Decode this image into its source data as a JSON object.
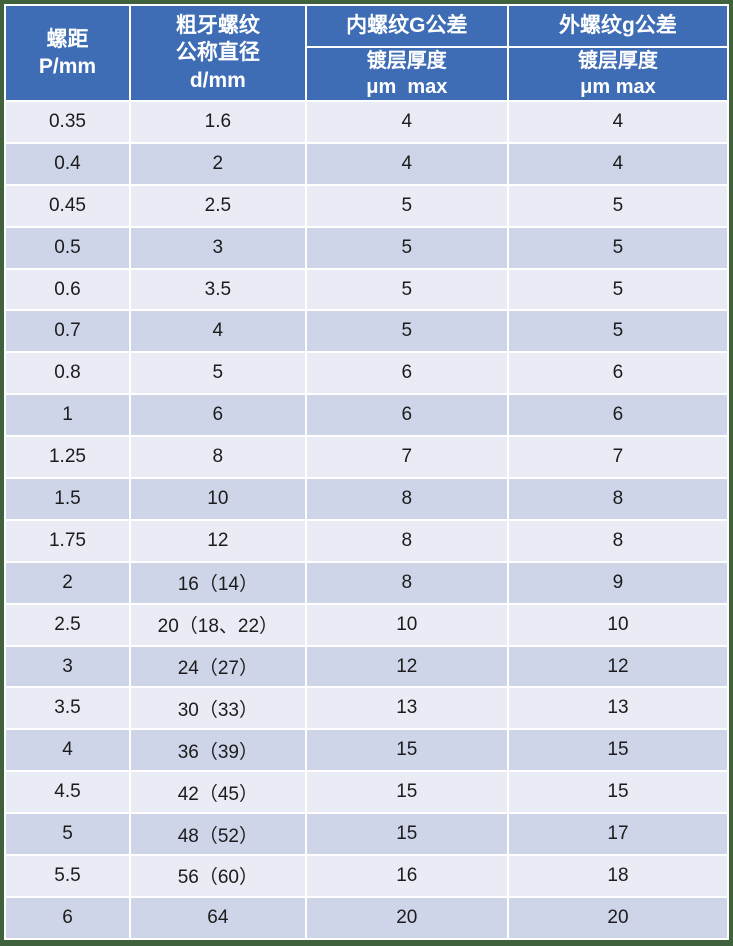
{
  "colors": {
    "header_blue": "#3E6CB5",
    "row_light": "#E9EBF5",
    "row_dark": "#CFD5E9",
    "frame_green": "#3F613C",
    "header_text": "#ffffff",
    "body_text": "#1c1c1c"
  },
  "table": {
    "col_headers": {
      "pitch": "螺距\nP/mm",
      "diameter": "粗牙螺纹\n公称直径\nd/mm",
      "internal_group": "内螺纹G公差",
      "internal_sub": "镀层厚度\nμm  max",
      "external_group": "外螺纹g公差",
      "external_sub": "镀层厚度\nμm max"
    },
    "rows": [
      [
        "0.35",
        "1.6",
        "4",
        "4"
      ],
      [
        "0.4",
        "2",
        "4",
        "4"
      ],
      [
        "0.45",
        "2.5",
        "5",
        "5"
      ],
      [
        "0.5",
        "3",
        "5",
        "5"
      ],
      [
        "0.6",
        "3.5",
        "5",
        "5"
      ],
      [
        "0.7",
        "4",
        "5",
        "5"
      ],
      [
        "0.8",
        "5",
        "6",
        "6"
      ],
      [
        "1",
        "6",
        "6",
        "6"
      ],
      [
        "1.25",
        "8",
        "7",
        "7"
      ],
      [
        "1.5",
        "10",
        "8",
        "8"
      ],
      [
        "1.75",
        "12",
        "8",
        "8"
      ],
      [
        "2",
        "16（14）",
        "8",
        "9"
      ],
      [
        "2.5",
        "20（18、22）",
        "10",
        "10"
      ],
      [
        "3",
        "24（27）",
        "12",
        "12"
      ],
      [
        "3.5",
        "30（33）",
        "13",
        "13"
      ],
      [
        "4",
        "36（39）",
        "15",
        "15"
      ],
      [
        "4.5",
        "42（45）",
        "15",
        "15"
      ],
      [
        "5",
        "48（52）",
        "15",
        "17"
      ],
      [
        "5.5",
        "56（60）",
        "16",
        "18"
      ],
      [
        "6",
        "64",
        "20",
        "20"
      ]
    ]
  }
}
